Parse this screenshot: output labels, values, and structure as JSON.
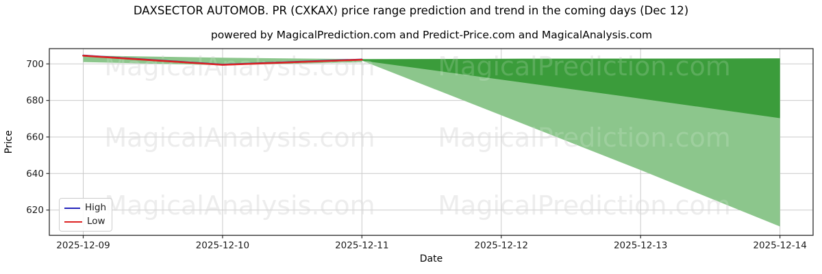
{
  "title": "DAXSECTOR AUTOMOB. PR (CXKAX) price range prediction and trend in the coming days (Dec 12)",
  "subtitle": "powered by MagicalPrediction.com and Predict-Price.com and MagicalAnalysis.com",
  "watermarks": {
    "left_text": "MagicalAnalysis.com",
    "right_text": "MagicalPrediction.com"
  },
  "legend": {
    "items": [
      {
        "label": "High",
        "color": "#2222bb"
      },
      {
        "label": "Low",
        "color": "#dd2222"
      }
    ]
  },
  "colors": {
    "inner_band": "#3b9c3b",
    "outer_band": "#8cc68c",
    "hist_band": "#8cc68c",
    "grid": "#c9c9c9",
    "spine": "#2a2a2a",
    "tick_text": "#1a1a1a",
    "watermark_gray": "#eaeaea"
  },
  "chart_data": {
    "type": "line",
    "title": "DAXSECTOR AUTOMOB. PR (CXKAX) price range prediction and trend in the coming days (Dec 12)",
    "subtitle": "powered by MagicalPrediction.com and Predict-Price.com and MagicalAnalysis.com",
    "xlabel": "Date",
    "ylabel": "Price",
    "x_ticks": [
      "2025-12-09",
      "2025-12-10",
      "2025-12-11",
      "2025-12-12",
      "2025-12-13",
      "2025-12-14"
    ],
    "y_ticks": [
      620,
      640,
      660,
      680,
      700
    ],
    "ylim": [
      606,
      708
    ],
    "grid": true,
    "legend_position": "lower left",
    "series": [
      {
        "name": "High",
        "color": "#2222bb",
        "x": [
          "2025-12-09",
          "2025-12-10",
          "2025-12-11"
        ],
        "values": [
          704.6,
          699.6,
          702.4
        ],
        "note": "hidden beneath Low line"
      },
      {
        "name": "Low",
        "color": "#dd2222",
        "x": [
          "2025-12-09",
          "2025-12-10",
          "2025-12-11"
        ],
        "values": [
          704.5,
          699.5,
          702.3
        ]
      }
    ],
    "bands": [
      {
        "name": "historical-range",
        "color": "#8cc68c",
        "x": [
          "2025-12-09",
          "2025-12-10",
          "2025-12-11"
        ],
        "top": [
          704.6,
          703.4,
          702.6
        ],
        "bottom": [
          701.0,
          699.3,
          700.9
        ]
      },
      {
        "name": "forecast-outer-range",
        "color": "#8cc68c",
        "x": [
          "2025-12-11",
          "2025-12-12",
          "2025-12-13",
          "2025-12-14"
        ],
        "top": [
          702.6,
          702.8,
          702.9,
          703.0
        ],
        "bottom": [
          701.8,
          671.9,
          641.9,
          611.0
        ]
      },
      {
        "name": "forecast-inner-range",
        "color": "#3b9c3b",
        "x": [
          "2025-12-11",
          "2025-12-12",
          "2025-12-13",
          "2025-12-14"
        ],
        "top": [
          702.6,
          702.8,
          702.9,
          703.0
        ],
        "bottom": [
          701.8,
          691.4,
          681.0,
          670.3
        ]
      }
    ]
  }
}
